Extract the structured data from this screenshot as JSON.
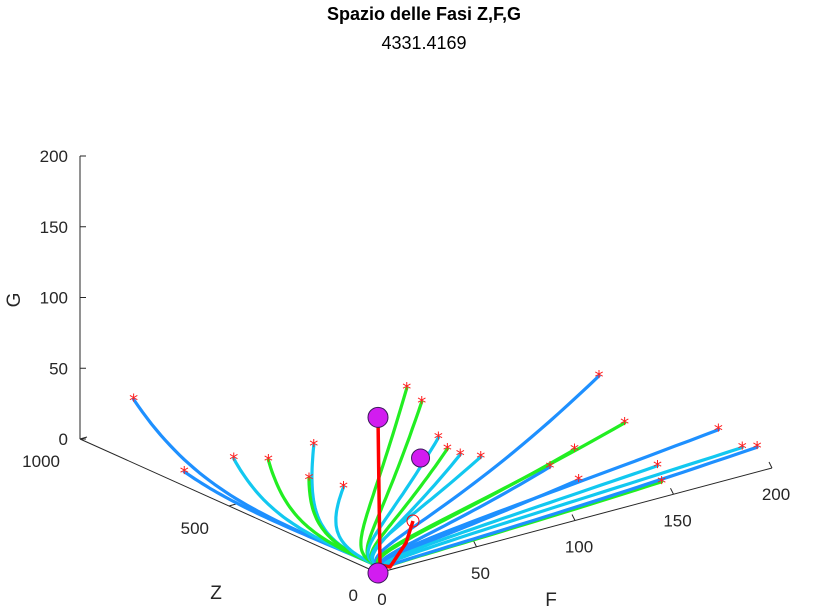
{
  "chart_data": {
    "type": "line",
    "title": "Spazio delle Fasi Z,F,G",
    "subtitle": "4331.4169",
    "xlabel": "F",
    "ylabel": "Z",
    "zlabel": "G",
    "xlim": [
      0,
      200
    ],
    "ylim": [
      0,
      1000
    ],
    "zlim": [
      0,
      200
    ],
    "xticks": [
      "0",
      "50",
      "100",
      "150",
      "200"
    ],
    "yticks": [
      "0",
      "500",
      "1000"
    ],
    "zticks": [
      "0",
      "50",
      "100",
      "150",
      "200"
    ],
    "grid": false,
    "colors": {
      "trajectory_blue": "#1e90ff",
      "trajectory_cyan": "#12c8f0",
      "trajectory_green": "#22ee22",
      "start_marker": "#ff2020",
      "main_trajectory": "#ff0000",
      "equilibrium_point": "#d21cf0"
    },
    "equilibria": [
      {
        "F": 0,
        "Z": 0,
        "G": 110
      },
      {
        "F": 0,
        "Z": 0,
        "G": 0
      },
      {
        "F": 70,
        "Z": 320,
        "G": 25
      }
    ],
    "trajectories": [
      {
        "color": "blue",
        "start": {
          "F": 0,
          "Z": 820,
          "G": 45
        }
      },
      {
        "color": "blue",
        "start": {
          "F": 0,
          "Z": 650,
          "G": 10
        }
      },
      {
        "color": "cyan",
        "start": {
          "F": 10,
          "Z": 550,
          "G": 25
        }
      },
      {
        "color": "green",
        "start": {
          "F": 20,
          "Z": 500,
          "G": 25
        }
      },
      {
        "color": "cyan",
        "start": {
          "F": 40,
          "Z": 480,
          "G": 30
        }
      },
      {
        "color": "green",
        "start": {
          "F": 30,
          "Z": 430,
          "G": 15
        }
      },
      {
        "color": "cyan",
        "start": {
          "F": 40,
          "Z": 380,
          "G": 10
        }
      },
      {
        "color": "green",
        "start": {
          "F": 60,
          "Z": 300,
          "G": 80
        }
      },
      {
        "color": "green",
        "start": {
          "F": 60,
          "Z": 250,
          "G": 75
        }
      },
      {
        "color": "cyan",
        "start": {
          "F": 70,
          "Z": 260,
          "G": 45
        }
      },
      {
        "color": "green",
        "start": {
          "F": 70,
          "Z": 230,
          "G": 40
        }
      },
      {
        "color": "cyan",
        "start": {
          "F": 75,
          "Z": 220,
          "G": 35
        }
      },
      {
        "color": "cyan",
        "start": {
          "F": 90,
          "Z": 250,
          "G": 25
        }
      },
      {
        "color": "blue",
        "start": {
          "F": 150,
          "Z": 250,
          "G": 60
        }
      },
      {
        "color": "blue",
        "start": {
          "F": 110,
          "Z": 150,
          "G": 20
        }
      },
      {
        "color": "green",
        "start": {
          "F": 130,
          "Z": 200,
          "G": 20
        }
      },
      {
        "color": "green",
        "start": {
          "F": 160,
          "Z": 230,
          "G": 25
        }
      },
      {
        "color": "blue",
        "start": {
          "F": 120,
          "Z": 120,
          "G": 10
        }
      },
      {
        "color": "cyan",
        "start": {
          "F": 160,
          "Z": 120,
          "G": 5
        }
      },
      {
        "color": "blue",
        "start": {
          "F": 200,
          "Z": 180,
          "G": 10
        }
      },
      {
        "color": "cyan",
        "start": {
          "F": 200,
          "Z": 100,
          "G": 5
        }
      },
      {
        "color": "green",
        "start": {
          "F": 150,
          "Z": 40,
          "G": 5
        }
      },
      {
        "color": "blue",
        "start": {
          "F": 200,
          "Z": 50,
          "G": 10
        }
      }
    ]
  }
}
